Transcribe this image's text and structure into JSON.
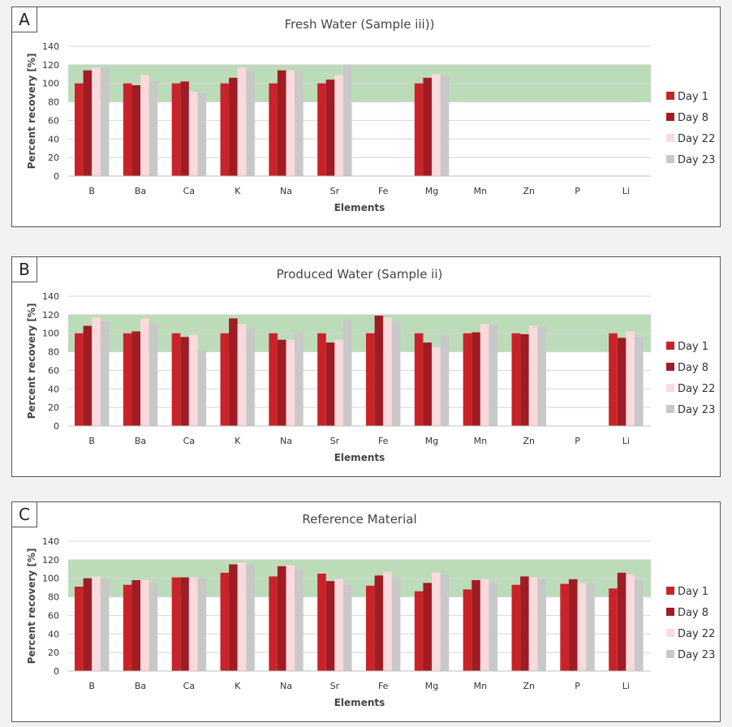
{
  "panels": [
    {
      "letter": "A"
    },
    {
      "letter": "B"
    },
    {
      "letter": "C"
    }
  ],
  "chart_data": [
    {
      "type": "bar",
      "title": "Fresh Water (Sample iii))",
      "xlabel": "Elements",
      "ylabel": "Percent recovery [%]",
      "ylim": [
        0,
        140
      ],
      "yticks": [
        0,
        20,
        40,
        60,
        80,
        100,
        120,
        140
      ],
      "grid": true,
      "acceptance_band": [
        80,
        120
      ],
      "legend_position": "right",
      "categories": [
        "B",
        "Ba",
        "Ca",
        "K",
        "Na",
        "Sr",
        "Fe",
        "Mg",
        "Mn",
        "Zn",
        "P",
        "Li"
      ],
      "series": [
        {
          "name": "Day 1",
          "color": "#c9232a",
          "values": [
            100,
            100,
            100,
            100,
            100,
            100,
            null,
            100,
            null,
            null,
            null,
            null
          ]
        },
        {
          "name": "Day 8",
          "color": "#a01c24",
          "values": [
            114,
            98,
            102,
            106,
            114,
            104,
            null,
            106,
            null,
            null,
            null,
            null
          ]
        },
        {
          "name": "Day 22",
          "color": "#fadadd",
          "values": [
            117,
            109,
            91,
            117,
            114,
            109,
            null,
            110,
            null,
            null,
            null,
            null
          ]
        },
        {
          "name": "Day 23",
          "color": "#c8c8c8",
          "values": [
            117,
            102,
            89,
            113,
            113,
            120,
            null,
            108,
            null,
            null,
            null,
            null
          ]
        }
      ]
    },
    {
      "type": "bar",
      "title": "Produced Water (Sample ii)",
      "xlabel": "Elements",
      "ylabel": "Percent recovery [%]",
      "ylim": [
        0,
        140
      ],
      "yticks": [
        0,
        20,
        40,
        60,
        80,
        100,
        120,
        140
      ],
      "grid": true,
      "acceptance_band": [
        80,
        120
      ],
      "legend_position": "right",
      "categories": [
        "B",
        "Ba",
        "Ca",
        "K",
        "Na",
        "Sr",
        "Fe",
        "Mg",
        "Mn",
        "Zn",
        "P",
        "Li"
      ],
      "series": [
        {
          "name": "Day 1",
          "color": "#c9232a",
          "values": [
            100,
            100,
            100,
            100,
            100,
            100,
            100,
            100,
            100,
            100,
            null,
            100
          ]
        },
        {
          "name": "Day 8",
          "color": "#a01c24",
          "values": [
            108,
            102,
            96,
            116,
            93,
            90,
            119,
            90,
            101,
            99,
            null,
            95
          ]
        },
        {
          "name": "Day 22",
          "color": "#fadadd",
          "values": [
            117,
            116,
            98,
            110,
            93,
            93,
            117,
            85,
            110,
            108,
            null,
            102
          ]
        },
        {
          "name": "Day 23",
          "color": "#c8c8c8",
          "values": [
            113,
            110,
            81,
            105,
            101,
            115,
            112,
            98,
            109,
            107,
            null,
            96
          ]
        }
      ]
    },
    {
      "type": "bar",
      "title": "Reference Material",
      "xlabel": "Elements",
      "ylabel": "Percent recovery [%]",
      "ylim": [
        0,
        140
      ],
      "yticks": [
        0,
        20,
        40,
        60,
        80,
        100,
        120,
        140
      ],
      "grid": true,
      "acceptance_band": [
        80,
        120
      ],
      "legend_position": "right",
      "categories": [
        "B",
        "Ba",
        "Ca",
        "K",
        "Na",
        "Sr",
        "Fe",
        "Mg",
        "Mn",
        "Zn",
        "P",
        "Li"
      ],
      "series": [
        {
          "name": "Day 1",
          "color": "#c9232a",
          "values": [
            91,
            93,
            101,
            106,
            102,
            105,
            92,
            86,
            88,
            93,
            94,
            89
          ]
        },
        {
          "name": "Day 8",
          "color": "#a01c24",
          "values": [
            100,
            98,
            101,
            115,
            113,
            97,
            103,
            95,
            98,
            102,
            99,
            106
          ]
        },
        {
          "name": "Day 22",
          "color": "#fadadd",
          "values": [
            102,
            98,
            101,
            117,
            114,
            99,
            107,
            106,
            99,
            101,
            95,
            104
          ]
        },
        {
          "name": "Day 23",
          "color": "#c8c8c8",
          "values": [
            99,
            95,
            100,
            115,
            110,
            93,
            100,
            104,
            96,
            99,
            94,
            98
          ]
        }
      ]
    }
  ]
}
